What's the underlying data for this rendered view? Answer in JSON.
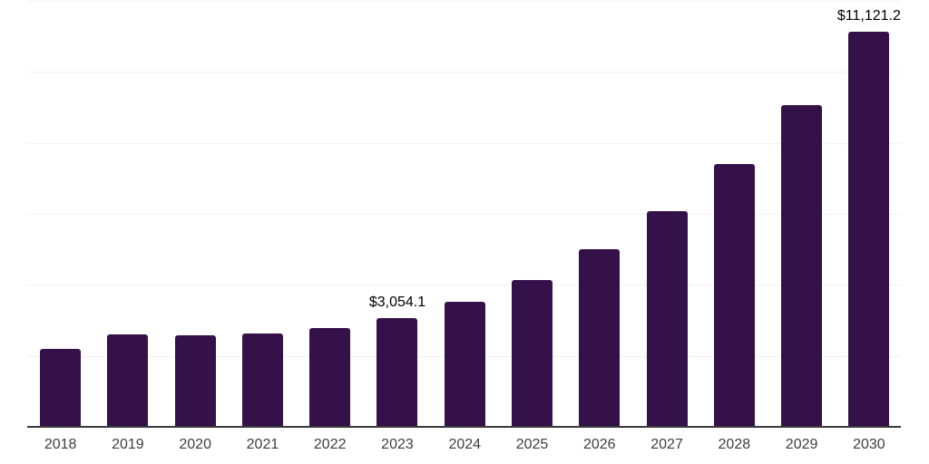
{
  "chart": {
    "background": "#FFFFFF",
    "bar_color": "#351149",
    "grid_color": "#F2F2F2",
    "axis_color": "#3A3A3A",
    "tick_label_color": "#3E3E3E",
    "value_label_color": "#000000"
  },
  "chart_data": {
    "type": "bar",
    "title": "",
    "xlabel": "",
    "ylabel": "",
    "categories": [
      "2018",
      "2019",
      "2020",
      "2021",
      "2022",
      "2023",
      "2024",
      "2025",
      "2026",
      "2027",
      "2028",
      "2029",
      "2030"
    ],
    "values": [
      2190,
      2610,
      2570,
      2640,
      2790,
      3054.1,
      3515,
      4145,
      5010,
      6070,
      7400,
      9060,
      11121.2
    ],
    "value_labels": [
      "",
      "",
      "",
      "",
      "",
      "$3,054.1",
      "",
      "",
      "",
      "",
      "",
      "",
      "$11,121.2"
    ],
    "ylim": [
      0,
      12000
    ],
    "gridline_step": 2000,
    "grid": true,
    "legend": "none",
    "y_axis_labels_visible": false
  }
}
